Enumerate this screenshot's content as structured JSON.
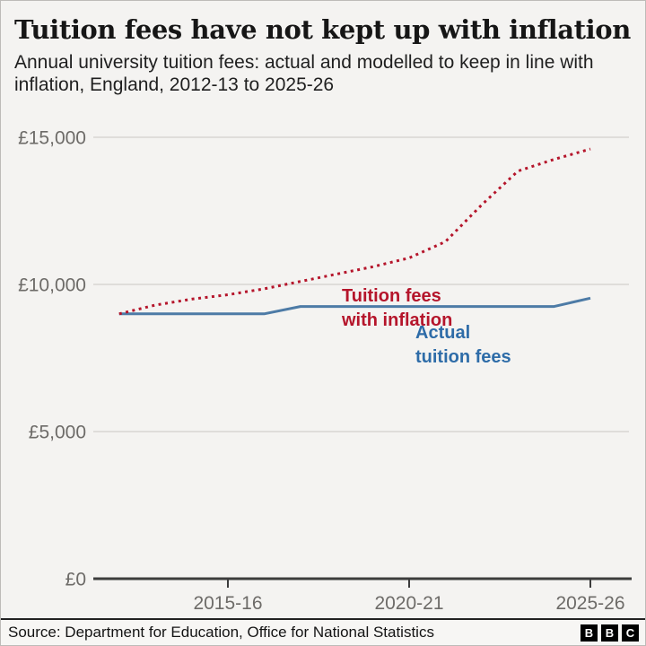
{
  "chart_data": {
    "type": "line",
    "title": "Tuition fees have not kept up with inflation",
    "subtitle": "Annual university tuition fees: actual and modelled to keep in line with inflation, England, 2012-13 to 2025-26",
    "categories": [
      "2012-13",
      "2013-14",
      "2014-15",
      "2015-16",
      "2016-17",
      "2017-18",
      "2018-19",
      "2019-20",
      "2020-21",
      "2021-22",
      "2022-23",
      "2023-24",
      "2024-25",
      "2025-26"
    ],
    "series": [
      {
        "name": "Tuition fees with inflation",
        "style": "dotted",
        "color": "#b5152b",
        "values": [
          9000,
          9300,
          9500,
          9650,
          9850,
          10100,
          10350,
          10600,
          10900,
          11450,
          12700,
          13850,
          14250,
          14600
        ]
      },
      {
        "name": "Actual tuition fees",
        "style": "solid",
        "color": "#4d7ba6",
        "values": [
          9000,
          9000,
          9000,
          9000,
          9000,
          9250,
          9250,
          9250,
          9250,
          9250,
          9250,
          9250,
          9250,
          9535
        ]
      }
    ],
    "ylim": [
      0,
      15000
    ],
    "yticks": [
      {
        "value": 15000,
        "label": "£15,000"
      },
      {
        "value": 10000,
        "label": "£10,000"
      },
      {
        "value": 5000,
        "label": "£5,000"
      },
      {
        "value": 0,
        "label": "£0"
      }
    ],
    "xticks": [
      "2015-16",
      "2020-21",
      "2025-26"
    ],
    "grid": "horizontal",
    "legend_position": "inline-annotations",
    "annotations": [
      {
        "lines": [
          "Tuition fees",
          "with inflation"
        ],
        "color": "#b5152b"
      },
      {
        "lines": [
          "Actual",
          "tuition fees"
        ],
        "color": "#2e6ca8"
      }
    ],
    "axis_label_color": "#6d6b68",
    "gridline_color": "#d8d6d3",
    "axis_line_color": "#3c3c3c"
  },
  "footer": {
    "source": "Source: Department for Education, Office for National Statistics",
    "logo": [
      "B",
      "B",
      "C"
    ]
  }
}
